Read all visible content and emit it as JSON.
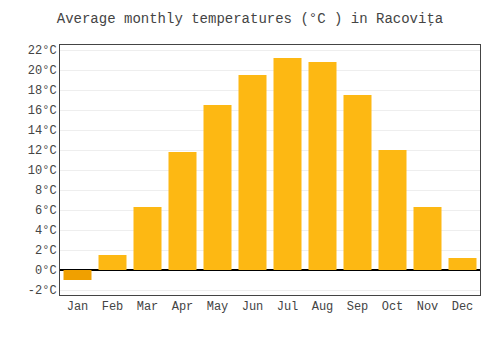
{
  "chart_data": {
    "type": "bar",
    "title": "Average monthly temperatures (°C ) in Racoviţa",
    "categories": [
      "Jan",
      "Feb",
      "Mar",
      "Apr",
      "May",
      "Jun",
      "Jul",
      "Aug",
      "Sep",
      "Oct",
      "Nov",
      "Dec"
    ],
    "values": [
      -1.0,
      1.5,
      6.3,
      11.8,
      16.5,
      19.5,
      21.2,
      20.8,
      17.5,
      12.0,
      6.3,
      1.2
    ],
    "colors": [
      "#F0A000",
      "#FDB813",
      "#FDB813",
      "#FDB813",
      "#FDB813",
      "#FDB813",
      "#FDB813",
      "#FDB813",
      "#FDB813",
      "#FDB813",
      "#FDB813",
      "#FDB813"
    ],
    "ylim": [
      -2.5,
      22.5
    ],
    "yticks": [
      {
        "value": -2,
        "label": "-2°C"
      },
      {
        "value": 0,
        "label": "0°C"
      },
      {
        "value": 2,
        "label": "2°C"
      },
      {
        "value": 4,
        "label": "4°C"
      },
      {
        "value": 6,
        "label": "6°C"
      },
      {
        "value": 8,
        "label": "8°C"
      },
      {
        "value": 10,
        "label": "10°C"
      },
      {
        "value": 12,
        "label": "12°C"
      },
      {
        "value": 14,
        "label": "14°C"
      },
      {
        "value": 16,
        "label": "16°C"
      },
      {
        "value": 18,
        "label": "18°C"
      },
      {
        "value": 20,
        "label": "20°C"
      },
      {
        "value": 22,
        "label": "22°C"
      }
    ],
    "grid": true
  }
}
